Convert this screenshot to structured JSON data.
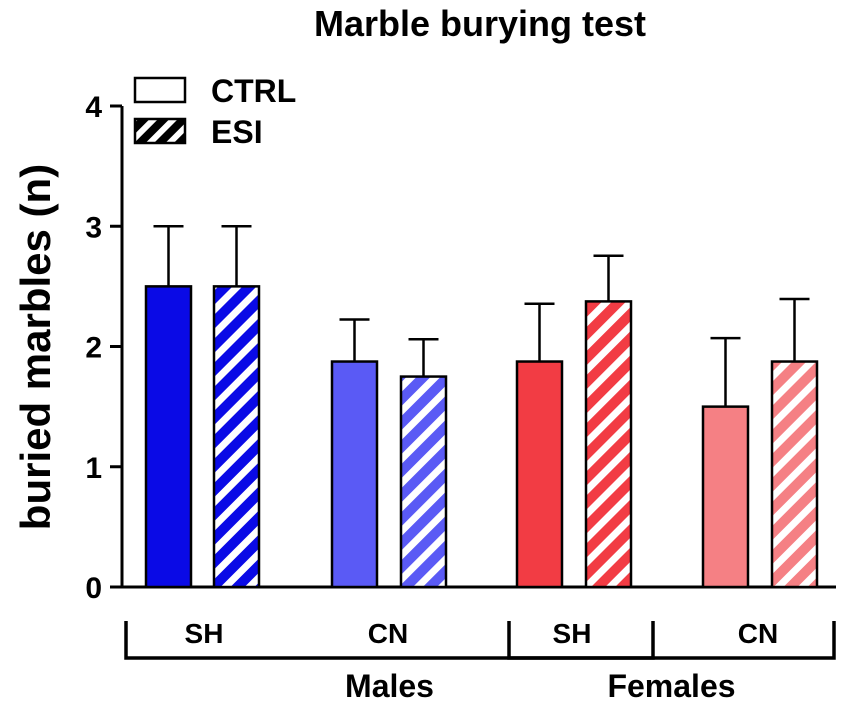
{
  "chart_data": {
    "type": "bar",
    "title": "Marble burying test",
    "xlabel": "",
    "ylabel": "buried marbles (n)",
    "ylim": [
      0,
      4
    ],
    "yticks": [
      0,
      1,
      2,
      3,
      4
    ],
    "grid": false,
    "legend": {
      "placement": "top-left",
      "entries": [
        {
          "name": "CTRL",
          "pattern": "solid"
        },
        {
          "name": "ESI",
          "pattern": "hatched"
        }
      ]
    },
    "groups": [
      {
        "label": "Males",
        "categories": [
          "SH",
          "CN"
        ]
      },
      {
        "label": "Females",
        "categories": [
          "SH",
          "CN"
        ]
      }
    ],
    "series": [
      {
        "name": "CTRL",
        "values": [
          2.5,
          1.875,
          1.875,
          1.5
        ],
        "errors": [
          0.5,
          0.35,
          0.48,
          0.57
        ]
      },
      {
        "name": "ESI",
        "values": [
          2.5,
          1.75,
          2.375,
          1.875
        ],
        "errors": [
          0.5,
          0.31,
          0.38,
          0.52
        ]
      }
    ],
    "category_colors": [
      "#0a0ae6",
      "#5a5af5",
      "#f23c44",
      "#f58084"
    ]
  }
}
